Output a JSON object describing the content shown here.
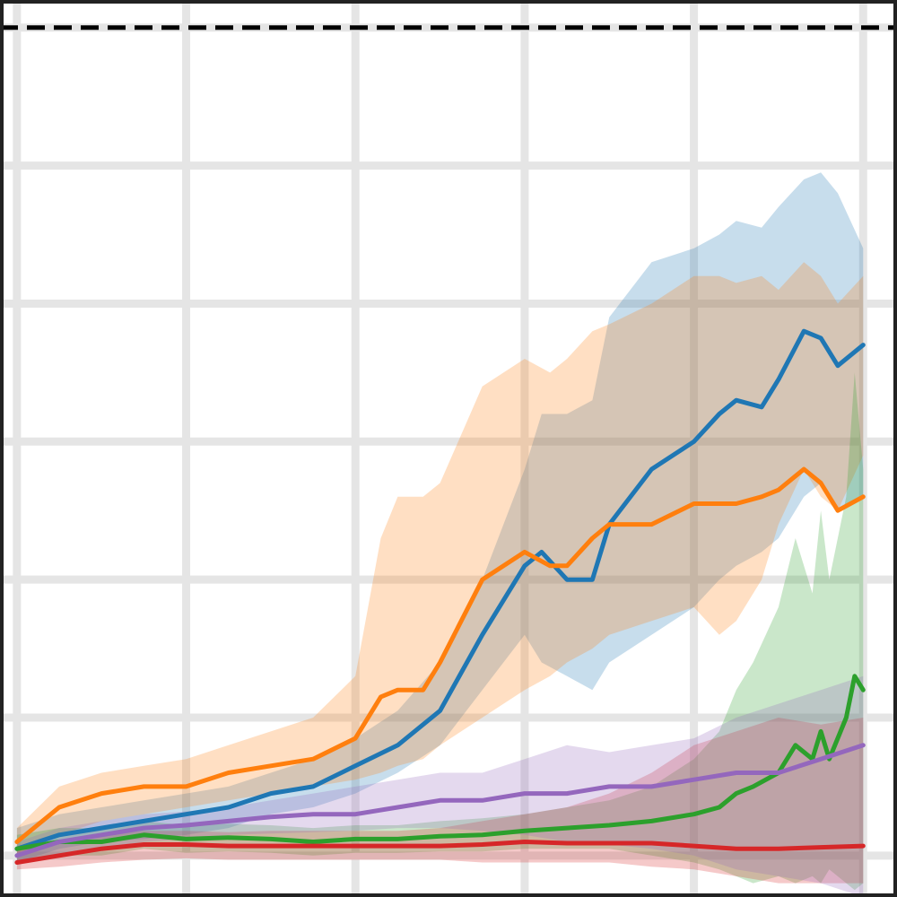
{
  "chart_data": {
    "type": "line",
    "title": "",
    "xlabel": "",
    "ylabel": "",
    "xlim": [
      -0.2,
      10.4
    ],
    "ylim": [
      -0.3,
      6.2
    ],
    "xticks": [
      0,
      2,
      4,
      6,
      8,
      10
    ],
    "yticks": [
      0,
      1,
      2,
      3,
      4,
      5,
      6
    ],
    "grid": true,
    "legend": "none",
    "reference_line": {
      "y": 6,
      "style": "dashed",
      "color": "#000000"
    },
    "series": [
      {
        "color": "#1f77b4",
        "x": [
          0,
          0.5,
          1,
          1.5,
          2,
          2.5,
          3,
          3.5,
          4,
          4.5,
          5,
          5.5,
          6,
          6.2,
          6.5,
          6.8,
          7,
          7.5,
          8,
          8.3,
          8.5,
          8.8,
          9,
          9.3,
          9.5,
          9.7,
          10
        ],
        "y": [
          0.05,
          0.15,
          0.2,
          0.25,
          0.3,
          0.35,
          0.45,
          0.5,
          0.65,
          0.8,
          1.05,
          1.6,
          2.1,
          2.2,
          2.0,
          2.0,
          2.4,
          2.8,
          3.0,
          3.2,
          3.3,
          3.25,
          3.45,
          3.8,
          3.75,
          3.55,
          3.7
        ],
        "upper": [
          0.2,
          0.3,
          0.35,
          0.4,
          0.45,
          0.5,
          0.6,
          0.7,
          0.85,
          1.05,
          1.4,
          2.0,
          2.8,
          3.2,
          3.2,
          3.3,
          3.9,
          4.3,
          4.4,
          4.5,
          4.6,
          4.55,
          4.7,
          4.9,
          4.95,
          4.8,
          4.4
        ],
        "lower": [
          -0.05,
          0.05,
          0.1,
          0.12,
          0.15,
          0.2,
          0.3,
          0.35,
          0.45,
          0.6,
          0.8,
          1.2,
          1.6,
          1.4,
          1.3,
          1.2,
          1.4,
          1.6,
          1.8,
          2.0,
          2.1,
          2.2,
          2.3,
          2.6,
          2.7,
          2.5,
          2.6
        ]
      },
      {
        "color": "#ff7f0e",
        "x": [
          0,
          0.5,
          1,
          1.5,
          2,
          2.5,
          3,
          3.5,
          4,
          4.3,
          4.5,
          4.8,
          5,
          5.5,
          6,
          6.3,
          6.5,
          6.8,
          7,
          7.5,
          8,
          8.3,
          8.5,
          8.8,
          9,
          9.3,
          9.5,
          9.7,
          10
        ],
        "y": [
          0.1,
          0.35,
          0.45,
          0.5,
          0.5,
          0.6,
          0.65,
          0.7,
          0.85,
          1.15,
          1.2,
          1.2,
          1.4,
          2.0,
          2.2,
          2.1,
          2.1,
          2.3,
          2.4,
          2.4,
          2.55,
          2.55,
          2.55,
          2.6,
          2.65,
          2.8,
          2.7,
          2.5,
          2.6
        ],
        "upper": [
          0.2,
          0.5,
          0.6,
          0.65,
          0.7,
          0.8,
          0.9,
          1.0,
          1.3,
          2.3,
          2.6,
          2.6,
          2.7,
          3.4,
          3.6,
          3.5,
          3.6,
          3.8,
          3.85,
          4.0,
          4.2,
          4.2,
          4.15,
          4.2,
          4.1,
          4.3,
          4.2,
          4.0,
          4.2
        ],
        "lower": [
          0.0,
          0.15,
          0.25,
          0.3,
          0.35,
          0.4,
          0.45,
          0.5,
          0.55,
          0.6,
          0.65,
          0.7,
          0.8,
          1.0,
          1.2,
          1.3,
          1.4,
          1.5,
          1.6,
          1.7,
          1.8,
          1.6,
          1.7,
          2.0,
          2.4,
          2.8,
          2.6,
          2.5,
          2.9
        ]
      },
      {
        "color": "#2ca02c",
        "x": [
          0,
          0.5,
          1,
          1.5,
          2,
          2.5,
          3,
          3.5,
          4,
          4.5,
          5,
          5.5,
          6,
          6.5,
          7,
          7.5,
          8,
          8.3,
          8.5,
          8.7,
          9,
          9.2,
          9.4,
          9.5,
          9.6,
          9.8,
          9.9,
          10
        ],
        "y": [
          0.05,
          0.1,
          0.1,
          0.15,
          0.12,
          0.13,
          0.12,
          0.1,
          0.12,
          0.12,
          0.14,
          0.15,
          0.18,
          0.2,
          0.22,
          0.25,
          0.3,
          0.35,
          0.45,
          0.5,
          0.6,
          0.8,
          0.7,
          0.9,
          0.7,
          1.0,
          1.3,
          1.2
        ],
        "upper": [
          0.15,
          0.2,
          0.2,
          0.25,
          0.22,
          0.23,
          0.22,
          0.2,
          0.22,
          0.22,
          0.25,
          0.27,
          0.3,
          0.35,
          0.4,
          0.5,
          0.7,
          0.9,
          1.2,
          1.4,
          1.8,
          2.3,
          1.9,
          2.5,
          2.0,
          2.6,
          3.5,
          2.8
        ],
        "lower": [
          -0.05,
          0.0,
          0.0,
          0.05,
          0.02,
          0.03,
          0.02,
          0.0,
          0.02,
          0.02,
          0.03,
          0.03,
          0.05,
          0.05,
          0.05,
          0.0,
          -0.05,
          -0.1,
          -0.15,
          -0.2,
          -0.15,
          -0.2,
          -0.15,
          -0.2,
          -0.1,
          -0.2,
          -0.25,
          -0.2
        ]
      },
      {
        "color": "#d62728",
        "x": [
          0,
          0.5,
          1,
          1.5,
          2,
          2.5,
          3,
          3.5,
          4,
          4.5,
          5,
          5.5,
          6,
          6.5,
          7,
          7.5,
          8,
          8.5,
          9,
          9.5,
          10
        ],
        "y": [
          -0.05,
          0.0,
          0.05,
          0.08,
          0.08,
          0.07,
          0.07,
          0.07,
          0.07,
          0.07,
          0.07,
          0.08,
          0.1,
          0.09,
          0.09,
          0.09,
          0.07,
          0.05,
          0.05,
          0.06,
          0.07
        ],
        "upper": [
          0.05,
          0.1,
          0.15,
          0.18,
          0.18,
          0.17,
          0.18,
          0.18,
          0.18,
          0.18,
          0.2,
          0.25,
          0.3,
          0.35,
          0.45,
          0.6,
          0.8,
          0.9,
          1.0,
          0.95,
          1.0
        ],
        "lower": [
          -0.1,
          -0.08,
          -0.05,
          -0.03,
          -0.02,
          -0.03,
          -0.03,
          -0.03,
          -0.03,
          -0.03,
          -0.03,
          -0.05,
          -0.05,
          -0.05,
          -0.05,
          -0.08,
          -0.1,
          -0.15,
          -0.2,
          -0.2,
          -0.2
        ]
      },
      {
        "color": "#9467bd",
        "x": [
          0,
          0.5,
          1,
          1.5,
          2,
          2.5,
          3,
          3.5,
          4,
          4.5,
          5,
          5.5,
          6,
          6.5,
          7,
          7.5,
          8,
          8.5,
          9,
          9.5,
          10
        ],
        "y": [
          0.0,
          0.1,
          0.15,
          0.2,
          0.22,
          0.25,
          0.28,
          0.3,
          0.3,
          0.35,
          0.4,
          0.4,
          0.45,
          0.45,
          0.5,
          0.5,
          0.55,
          0.6,
          0.6,
          0.7,
          0.8
        ],
        "upper": [
          0.1,
          0.2,
          0.25,
          0.3,
          0.32,
          0.35,
          0.4,
          0.45,
          0.5,
          0.55,
          0.6,
          0.6,
          0.7,
          0.8,
          0.75,
          0.8,
          0.85,
          1.0,
          1.1,
          1.2,
          1.3
        ],
        "lower": [
          -0.05,
          0.0,
          0.05,
          0.1,
          0.12,
          0.15,
          0.16,
          0.17,
          0.18,
          0.2,
          0.2,
          0.18,
          0.15,
          0.1,
          0.08,
          0.05,
          0.0,
          -0.1,
          -0.15,
          -0.2,
          -0.3
        ]
      }
    ]
  }
}
